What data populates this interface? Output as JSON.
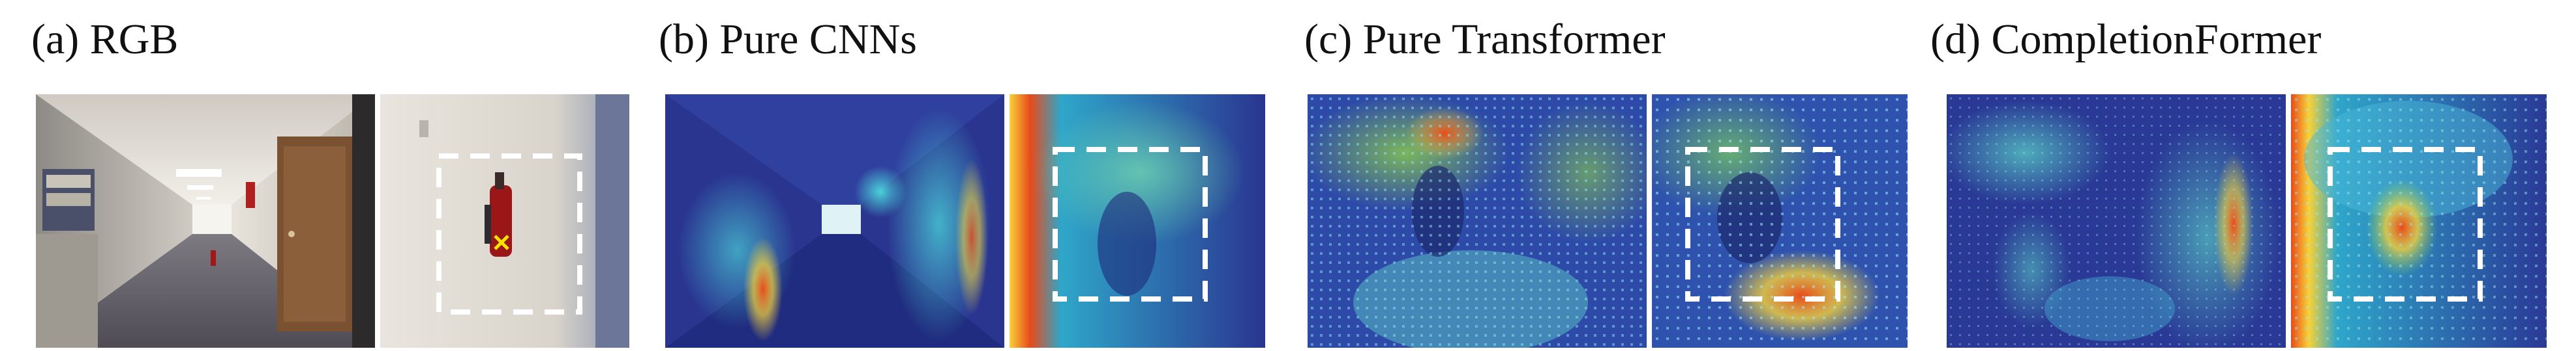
{
  "panels": [
    {
      "id": "a",
      "caption": "(a) RGB"
    },
    {
      "id": "b",
      "caption": "(b) Pure CNNs"
    },
    {
      "id": "c",
      "caption": "(c) Pure Transformer"
    },
    {
      "id": "d",
      "caption": "(d) CompletionFormer"
    }
  ],
  "colors": {
    "heat_low": "#24328f",
    "heat_mid": "#2fa6c9",
    "heat_high": "#e94a1a",
    "heat_peak": "#f6d23a",
    "highlight_box": "#ffffff",
    "marker": "#f5e400"
  },
  "icons": {
    "query_marker": "cross-marker-icon"
  }
}
